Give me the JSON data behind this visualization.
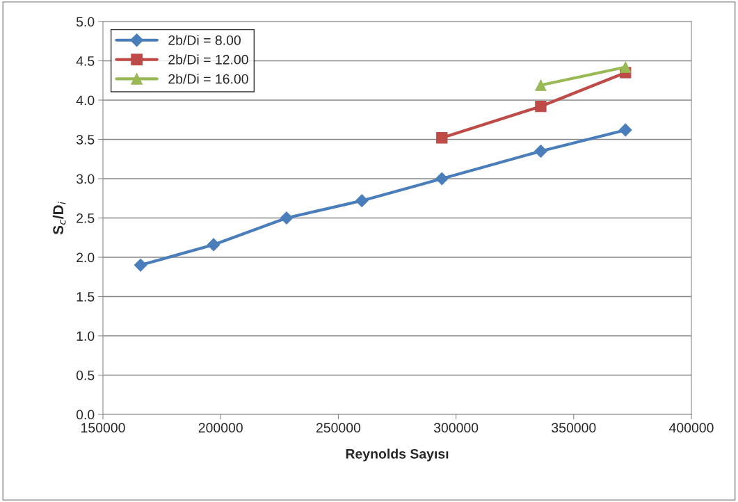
{
  "chart_data": {
    "type": "line",
    "xlabel": "Reynolds Sayısı",
    "ylabel": "S$_{c}$/D$_{i}$",
    "xlim": [
      150000,
      400000
    ],
    "xticks": [
      150000,
      200000,
      250000,
      300000,
      350000,
      400000
    ],
    "ylim": [
      0.0,
      5.0
    ],
    "yticks": [
      {
        "value": 0,
        "label": "0.0"
      },
      {
        "value": 0.5,
        "label": "0.5"
      },
      {
        "value": 1,
        "label": "1.0"
      },
      {
        "value": 1.5,
        "label": "1.5"
      },
      {
        "value": 2,
        "label": "2.0"
      },
      {
        "value": 2.5,
        "label": "2.5"
      },
      {
        "value": 3,
        "label": "3.0"
      },
      {
        "value": 3.5,
        "label": "3.5"
      },
      {
        "value": 4,
        "label": "4.0"
      },
      {
        "value": 4.5,
        "label": "4.5"
      },
      {
        "value": 5,
        "label": "5.0"
      }
    ],
    "grid": "y",
    "legend": "top left",
    "line_style": "solid",
    "series": [
      {
        "name": "2b/Di = 8.00",
        "color": "#4a7ebb",
        "marker": "diamond",
        "x": [
          166000,
          197000,
          228000,
          260000,
          294000,
          336000,
          372000
        ],
        "values": [
          1.9,
          2.16,
          2.5,
          2.72,
          3.0,
          3.35,
          3.62
        ]
      },
      {
        "name": "2b/Di = 12.00",
        "color": "#be4b48",
        "marker": "square",
        "x": [
          294000,
          336000,
          372000
        ],
        "values": [
          3.52,
          3.92,
          4.35
        ]
      },
      {
        "name": "2b/Di = 16.00",
        "color": "#98b954",
        "marker": "triangle",
        "x": [
          336000,
          372000
        ],
        "values": [
          4.19,
          4.42
        ]
      }
    ]
  }
}
